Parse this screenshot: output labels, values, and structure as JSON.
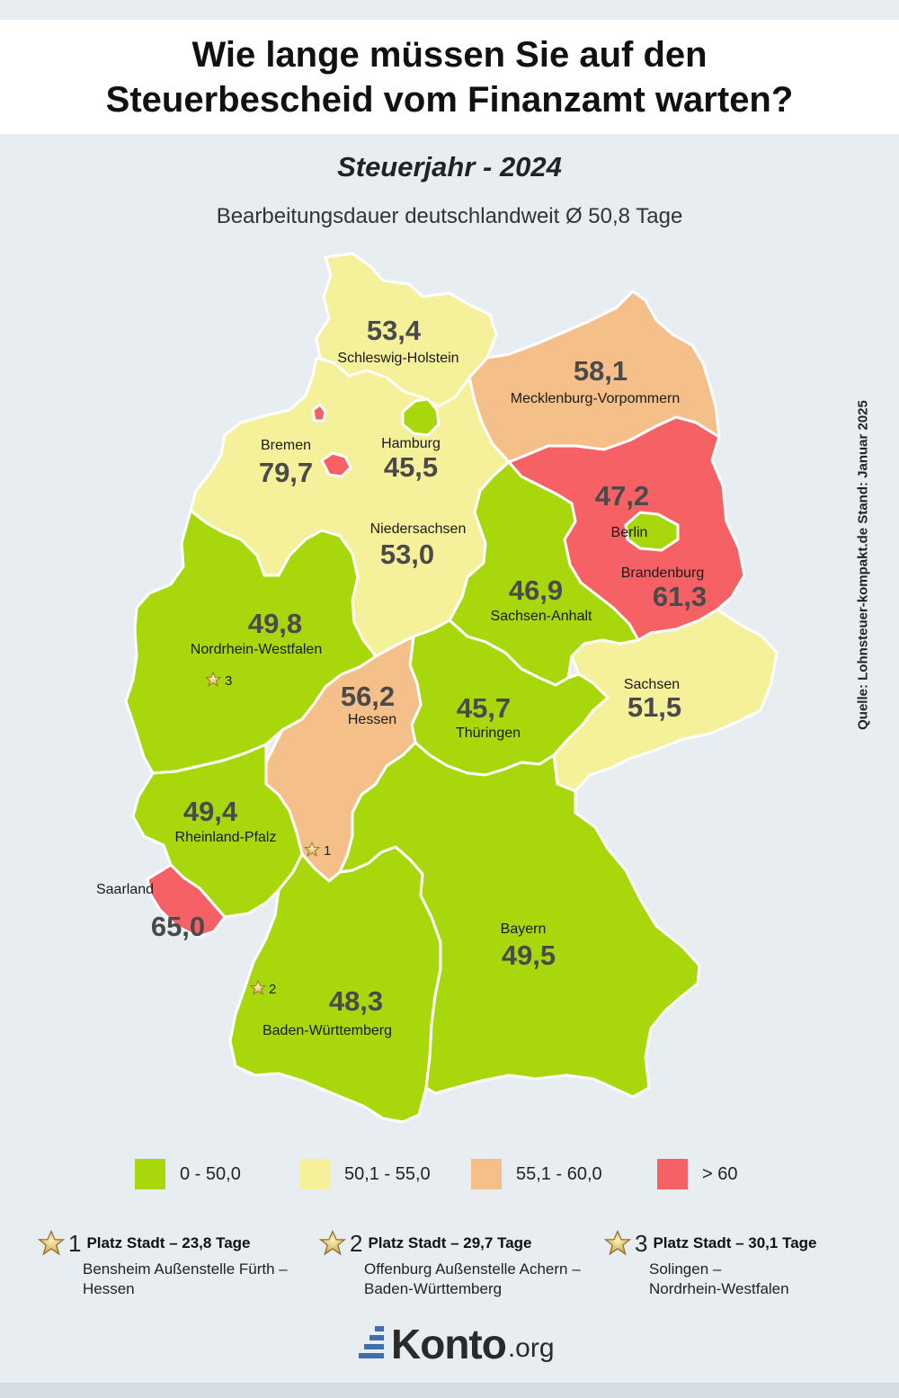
{
  "title": {
    "line1": "Wie lange müssen Sie auf den",
    "line2": "Steuerbescheid vom Finanzamt warten?"
  },
  "subtitle": "Steuerjahr - 2024",
  "average_text": "Bearbeitungsdauer deutschlandweit Ø 50,8 Tage",
  "source": "Quelle: Lohnsteuer-kompakt.de Stand: Januar 2025",
  "colors": {
    "green": "#a8d80b",
    "yellow": "#f5f09a",
    "orange": "#f5bf8a",
    "red": "#f56165",
    "background": "#e8edf1"
  },
  "states": {
    "sh": {
      "name": "Schleswig-Holstein",
      "value": "53,4",
      "days": 53.4,
      "category": "yellow"
    },
    "mv": {
      "name": "Mecklenburg-Vorpommern",
      "value": "58,1",
      "days": 58.1,
      "category": "orange"
    },
    "hb": {
      "name": "Bremen",
      "value": "79,7",
      "days": 79.7,
      "category": "red"
    },
    "hh": {
      "name": "Hamburg",
      "value": "45,5",
      "days": 45.5,
      "category": "green"
    },
    "ni": {
      "name": "Niedersachsen",
      "value": "53,0",
      "days": 53.0,
      "category": "yellow"
    },
    "be": {
      "name": "Berlin",
      "value": "47,2",
      "days": 47.2,
      "category": "green"
    },
    "bb": {
      "name": "Brandenburg",
      "value": "61,3",
      "days": 61.3,
      "category": "red"
    },
    "st": {
      "name": "Sachsen-Anhalt",
      "value": "46,9",
      "days": 46.9,
      "category": "green"
    },
    "nw": {
      "name": "Nordrhein-Westfalen",
      "value": "49,8",
      "days": 49.8,
      "category": "green"
    },
    "he": {
      "name": "Hessen",
      "value": "56,2",
      "days": 56.2,
      "category": "orange"
    },
    "th": {
      "name": "Thüringen",
      "value": "45,7",
      "days": 45.7,
      "category": "green"
    },
    "sn": {
      "name": "Sachsen",
      "value": "51,5",
      "days": 51.5,
      "category": "yellow"
    },
    "rp": {
      "name": "Rheinland-Pfalz",
      "value": "49,4",
      "days": 49.4,
      "category": "green"
    },
    "sl": {
      "name": "Saarland",
      "value": "65,0",
      "days": 65.0,
      "category": "red"
    },
    "bw": {
      "name": "Baden-Württemberg",
      "value": "48,3",
      "days": 48.3,
      "category": "green"
    },
    "by": {
      "name": "Bayern",
      "value": "49,5",
      "days": 49.5,
      "category": "green"
    }
  },
  "map_stars": [
    "1",
    "2",
    "3"
  ],
  "legend": [
    {
      "label": "0 - 50,0",
      "color": "#a8d80b"
    },
    {
      "label": "50,1 - 55,0",
      "color": "#f5f09a"
    },
    {
      "label": "55,1 - 60,0",
      "color": "#f5bf8a"
    },
    {
      "label": "> 60",
      "color": "#f56165"
    }
  ],
  "ranking": [
    {
      "rank": "1",
      "title": "Platz Stadt – 23,8 Tage",
      "line1": "Bensheim Außenstelle Fürth –",
      "line2": "Hessen"
    },
    {
      "rank": "2",
      "title": "Platz Stadt – 29,7 Tage",
      "line1": "Offenburg Außenstelle Achern –",
      "line2": "Baden-Württemberg"
    },
    {
      "rank": "3",
      "title": "Platz Stadt – 30,1 Tage",
      "line1": "Solingen –",
      "line2": "Nordrhein-Westfalen"
    }
  ],
  "logo": {
    "main": "Konto",
    "tld": ".org"
  }
}
